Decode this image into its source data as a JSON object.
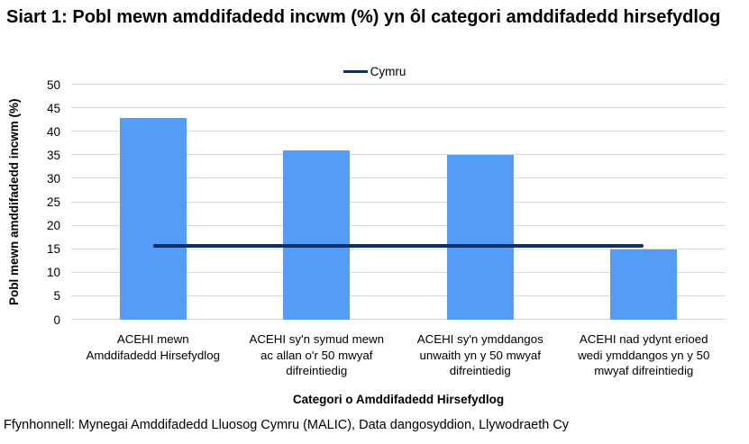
{
  "title": "Siart 1: Pobl mewn amddifadedd incwm (%) yn ôl categori amddifadedd hirsefydlog",
  "source": "Ffynhonnell: Mynegai Amddifadedd Lluosog Cymru (MALIC), Data dangosyddion, Llywodraeth Cy",
  "colors": {
    "bar": "#549CF7",
    "reference_line": "#0E3063",
    "gridline": "#D9D9D9",
    "text": "#000000",
    "background": "#FFFFFF"
  },
  "chart_data": {
    "type": "bar",
    "title": "Siart 1: Pobl mewn amddifadedd incwm (%) yn ôl categori amddifadedd hirsefydlog",
    "categories": [
      "ACEHI mewn Amddifadedd Hirsefydlog",
      "ACEHI sy'n symud mewn ac allan o'r 50 mwyaf difreintiedig",
      "ACEHI sy'n ymddangos unwaith yn y 50 mwyaf difreintiedig",
      "ACEHI nad ydynt erioed wedi ymddangos yn y 50 mwyaf difreintiedig"
    ],
    "values": [
      43,
      36,
      35,
      15
    ],
    "reference_line": {
      "name": "Cymru",
      "value": 15.8
    },
    "xlabel": "Categori o Amddifadedd Hirsefydlog",
    "ylabel": "Pobl mewn amddifadedd incwm (%)",
    "ylim": [
      0,
      50
    ],
    "y_ticks": [
      0,
      5,
      10,
      15,
      20,
      25,
      30,
      35,
      40,
      45,
      50
    ],
    "grid": "horizontal",
    "legend_position": "top"
  }
}
